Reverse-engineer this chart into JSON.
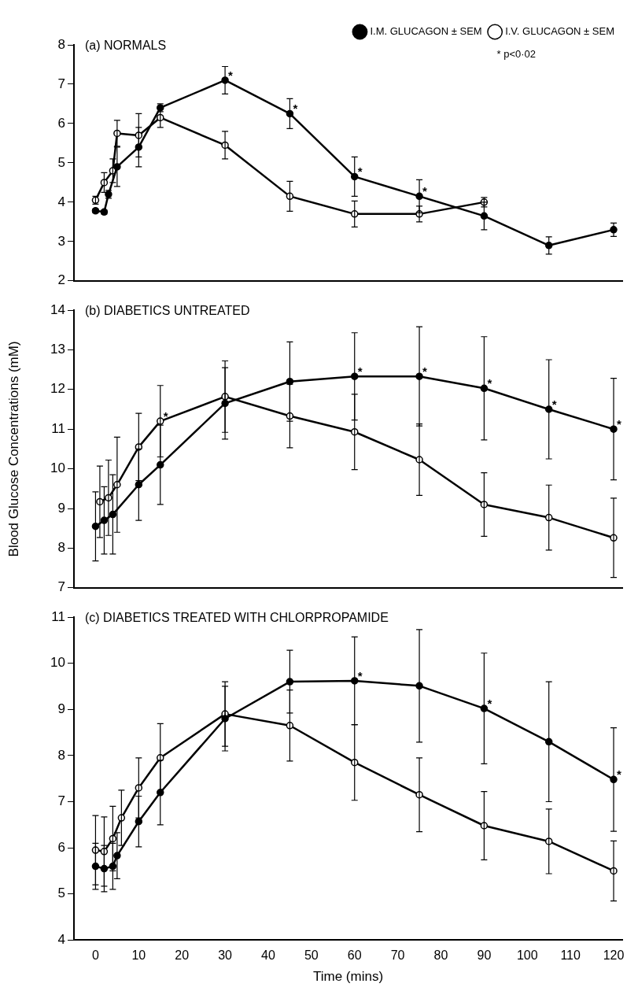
{
  "chart_data": [
    {
      "type": "line",
      "title": "(a) NORMALS",
      "xlim": [
        -5,
        122
      ],
      "xticks": [
        0,
        10,
        20,
        30,
        40,
        50,
        60,
        70,
        80,
        90,
        100,
        110,
        120
      ],
      "ylim": [
        2,
        8
      ],
      "yticks": [
        2,
        3,
        4,
        5,
        6,
        7,
        8
      ],
      "tick_labels": "y",
      "grid": false,
      "legend": "top right",
      "marker": "circle",
      "line_style": "solid",
      "annotations": [
        {
          "text": "*",
          "x": 30,
          "y": 7.1
        },
        {
          "text": "*",
          "x": 45,
          "y": 6.25
        },
        {
          "text": "*",
          "x": 60,
          "y": 4.65
        },
        {
          "text": "*",
          "x": 75,
          "y": 4.15
        },
        "* p<0·02"
      ],
      "series": [
        {
          "name": "I.M. GLUCAGON ± SEM",
          "color": "#000000",
          "x": [
            0,
            2,
            3,
            5,
            10,
            15,
            30,
            45,
            60,
            75,
            90,
            105,
            120
          ],
          "values": [
            3.78,
            3.75,
            4.2,
            4.9,
            5.4,
            6.4,
            7.1,
            6.25,
            4.65,
            4.15,
            3.65,
            2.9,
            3.3
          ],
          "errors": [
            0.05,
            0.05,
            0.1,
            0.5,
            0.5,
            0.1,
            0.35,
            0.38,
            0.5,
            0.42,
            0.35,
            0.22,
            0.17
          ]
        },
        {
          "name": "I.V. GLUCAGON ± SEM",
          "color": "#000000",
          "x": [
            0,
            2,
            4,
            5,
            10,
            15,
            30,
            45,
            60,
            75,
            90
          ],
          "values": [
            4.05,
            4.5,
            4.8,
            5.75,
            5.7,
            6.15,
            5.45,
            4.15,
            3.7,
            3.7,
            4.0
          ],
          "errors": [
            0.1,
            0.25,
            0.3,
            0.33,
            0.55,
            0.25,
            0.35,
            0.38,
            0.33,
            0.2,
            0.12
          ]
        }
      ]
    },
    {
      "type": "line",
      "title": "(b) DIABETICS UNTREATED",
      "ylabel": "Blood Glucose Concentrations (mM)",
      "xlim": [
        -5,
        122
      ],
      "xticks": [
        0,
        10,
        20,
        30,
        40,
        50,
        60,
        70,
        80,
        90,
        100,
        110,
        120
      ],
      "ylim": [
        7,
        14
      ],
      "yticks": [
        7,
        8,
        9,
        10,
        11,
        12,
        13,
        14
      ],
      "tick_labels": "y",
      "grid": false,
      "marker": "circle",
      "line_style": "solid",
      "annotations": [
        {
          "text": "*",
          "x": 15,
          "y": 11.2
        },
        {
          "text": "*",
          "x": 60,
          "y": 12.33
        },
        {
          "text": "*",
          "x": 75,
          "y": 12.33
        },
        {
          "text": "*",
          "x": 90,
          "y": 12.03
        },
        {
          "text": "*",
          "x": 105,
          "y": 11.5
        },
        {
          "text": "*",
          "x": 120,
          "y": 11.0
        }
      ],
      "series": [
        {
          "color": "#000000",
          "x": [
            0,
            2,
            4,
            10,
            15,
            30,
            45,
            60,
            75,
            90,
            105,
            120
          ],
          "values": [
            8.55,
            8.7,
            8.85,
            9.6,
            10.1,
            11.65,
            12.2,
            12.33,
            12.33,
            12.03,
            11.5,
            11.0
          ],
          "errors": [
            0.87,
            0.85,
            1.0,
            0.9,
            1.0,
            0.9,
            1.0,
            1.1,
            1.25,
            1.3,
            1.25,
            1.28
          ]
        },
        {
          "color": "#000000",
          "x": [
            1,
            3,
            5,
            10,
            15,
            30,
            45,
            60,
            75,
            90,
            105,
            120
          ],
          "values": [
            9.17,
            9.27,
            9.6,
            10.55,
            11.2,
            11.82,
            11.33,
            10.93,
            10.23,
            9.1,
            8.77,
            8.26
          ],
          "errors": [
            0.9,
            0.95,
            1.2,
            0.85,
            0.9,
            0.9,
            0.8,
            0.95,
            0.9,
            0.8,
            0.82,
            1.0
          ]
        }
      ]
    },
    {
      "type": "line",
      "title": "(c) DIABETICS TREATED WITH CHLORPROPAMIDE",
      "xlabel": "Time (mins)",
      "xlim": [
        -5,
        122
      ],
      "xticks": [
        0,
        10,
        20,
        30,
        40,
        50,
        60,
        70,
        80,
        90,
        100,
        110,
        120
      ],
      "ylim": [
        4,
        11
      ],
      "yticks": [
        4,
        5,
        6,
        7,
        8,
        9,
        10,
        11
      ],
      "grid": false,
      "marker": "circle",
      "line_style": "solid",
      "annotations": [
        {
          "text": "*",
          "x": 60,
          "y": 9.62
        },
        {
          "text": "*",
          "x": 90,
          "y": 9.02
        },
        {
          "text": "*",
          "x": 120,
          "y": 7.48
        }
      ],
      "series": [
        {
          "color": "#000000",
          "x": [
            0,
            2,
            4,
            5,
            10,
            15,
            30,
            45,
            60,
            75,
            90,
            105,
            120
          ],
          "values": [
            5.6,
            5.55,
            5.6,
            5.83,
            6.57,
            7.2,
            8.8,
            9.6,
            9.62,
            9.51,
            9.02,
            8.3,
            7.48
          ],
          "errors": [
            0.5,
            0.5,
            0.5,
            0.5,
            0.55,
            0.7,
            0.7,
            0.68,
            0.95,
            1.22,
            1.2,
            1.3,
            1.12
          ]
        },
        {
          "color": "#000000",
          "x": [
            0,
            2,
            4,
            6,
            10,
            15,
            30,
            45,
            60,
            75,
            90,
            105,
            120
          ],
          "values": [
            5.95,
            5.92,
            6.2,
            6.65,
            7.3,
            7.95,
            8.9,
            8.65,
            7.85,
            7.15,
            6.48,
            6.14,
            5.5
          ],
          "errors": [
            0.75,
            0.75,
            0.7,
            0.6,
            0.65,
            0.74,
            0.7,
            0.77,
            0.82,
            0.8,
            0.74,
            0.7,
            0.65
          ]
        }
      ]
    }
  ]
}
